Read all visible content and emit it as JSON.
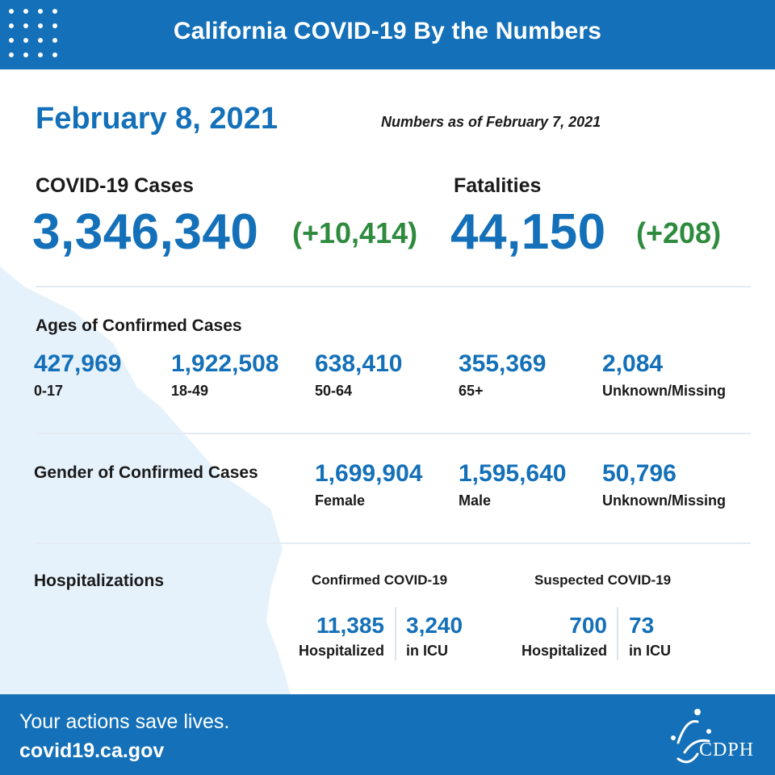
{
  "header": {
    "title": "California COVID-19 By the Numbers"
  },
  "date": "February 8, 2021",
  "as_of": "Numbers as of February 7, 2021",
  "cases": {
    "label": "COVID-19 Cases",
    "total": "3,346,340",
    "change": "(+10,414)"
  },
  "fatalities": {
    "label": "Fatalities",
    "total": "44,150",
    "change": "(+208)"
  },
  "ages": {
    "title": "Ages of Confirmed Cases",
    "groups": [
      {
        "value": "427,969",
        "label": "0-17"
      },
      {
        "value": "1,922,508",
        "label": "18-49"
      },
      {
        "value": "638,410",
        "label": "50-64"
      },
      {
        "value": "355,369",
        "label": "65+"
      },
      {
        "value": "2,084",
        "label": "Unknown/Missing"
      }
    ]
  },
  "gender": {
    "title": "Gender of Confirmed Cases",
    "groups": [
      {
        "value": "1,699,904",
        "label": "Female"
      },
      {
        "value": "1,595,640",
        "label": "Male"
      },
      {
        "value": "50,796",
        "label": "Unknown/Missing"
      }
    ]
  },
  "hospitalizations": {
    "title": "Hospitalizations",
    "confirmed": {
      "title": "Confirmed COVID-19",
      "hospitalized": {
        "value": "11,385",
        "label": "Hospitalized"
      },
      "icu": {
        "value": "3,240",
        "label": "in ICU"
      }
    },
    "suspected": {
      "title": "Suspected COVID-19",
      "hospitalized": {
        "value": "700",
        "label": "Hospitalized"
      },
      "icu": {
        "value": "73",
        "label": "in ICU"
      }
    }
  },
  "footer": {
    "slogan": "Your actions save lives.",
    "website": "covid19.ca.gov",
    "logo_text": "CDPH"
  },
  "colors": {
    "brand_blue": "#1470b8",
    "increase_green": "#2e8b3e",
    "map_tint": "#e6f2fb"
  }
}
